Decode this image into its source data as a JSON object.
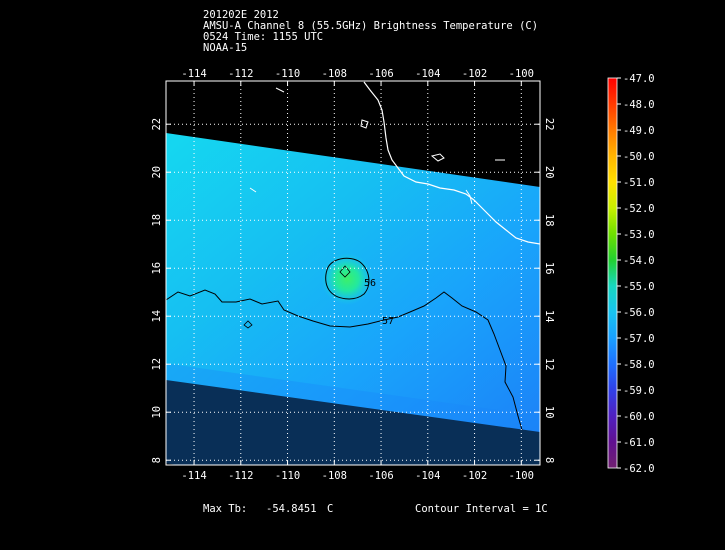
{
  "header": {
    "line1": "201202E 2012",
    "line2": "AMSU-A Channel 8 (55.5GHz) Brightness Temperature (C)",
    "line3": "0524 Time: 1155 UTC",
    "line4": "NOAA-15"
  },
  "map": {
    "lon_ticks": [
      "-114",
      "-112",
      "-110",
      "-108",
      "-106",
      "-104",
      "-102",
      "-100"
    ],
    "lon_values": [
      -114,
      -112,
      -110,
      -108,
      -106,
      -104,
      -102,
      -100
    ],
    "lat_ticks": [
      "22",
      "20",
      "18",
      "16",
      "14",
      "12",
      "10",
      "8"
    ],
    "lat_values": [
      22,
      20,
      18,
      16,
      14,
      12,
      10,
      8
    ],
    "lon_range": [
      -115.2,
      -99.2
    ],
    "lat_range": [
      7.8,
      23.8
    ],
    "contour_labels": [
      "56",
      "57"
    ],
    "colors": {
      "warm_center": "#2ee866",
      "mid": "#17c6ee",
      "cool": "#1a9cff",
      "coolest": "#1e78f5",
      "coastline": "#ffffff",
      "contour": "#000000"
    }
  },
  "colorbar": {
    "labels": [
      "-47.0",
      "-48.0",
      "-49.0",
      "-50.0",
      "-51.0",
      "-52.0",
      "-53.0",
      "-54.0",
      "-55.0",
      "-56.0",
      "-57.0",
      "-58.0",
      "-59.0",
      "-60.0",
      "-61.0",
      "-62.0"
    ],
    "colors": [
      "#ff0000",
      "#ff3a00",
      "#ff7a00",
      "#ffb400",
      "#ffe000",
      "#c8f000",
      "#6ee000",
      "#22d030",
      "#18d8c0",
      "#18c4f0",
      "#1aa0ff",
      "#1e70ff",
      "#3040e8",
      "#5020c0",
      "#601090",
      "#702070"
    ]
  },
  "footer": {
    "max_tb_label": "Max Tb:",
    "max_tb_value": "-54.8451",
    "max_tb_unit": "C",
    "contour_interval": "Contour Interval = 1C"
  }
}
